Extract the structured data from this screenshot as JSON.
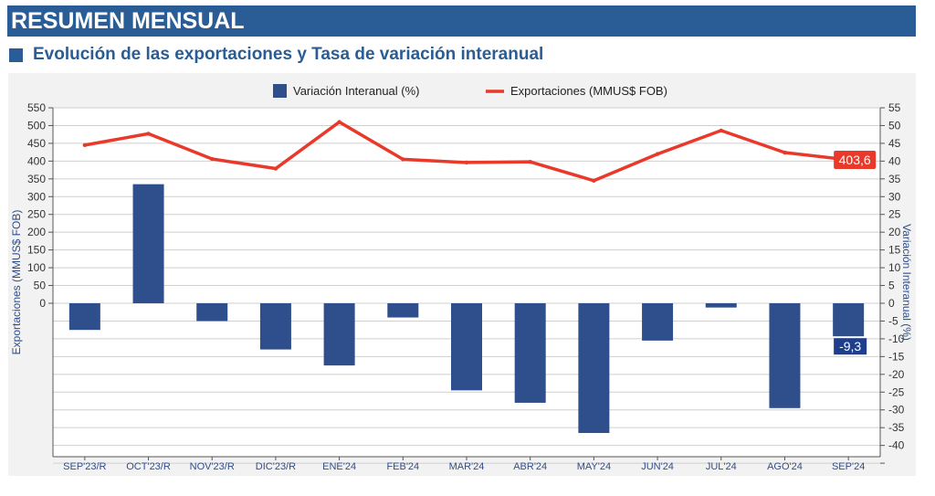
{
  "header": {
    "title": "RESUMEN MENSUAL",
    "subtitle": "Evolución de las exportaciones y Tasa de variación interanual"
  },
  "colors": {
    "banner": "#2a5d95",
    "bar": "#2f4e8c",
    "line": "#e8392b",
    "panel": "#f2f2f2",
    "grid": "#cfcfcf",
    "axis_text": "#2f4e8c"
  },
  "chart_data": {
    "type": "bar",
    "categories": [
      "SEP'23/R",
      "OCT'23/R",
      "NOV'23/R",
      "DIC'23/R",
      "ENE'24",
      "FEB'24",
      "MAR'24",
      "ABR'24",
      "MAY'24",
      "JUN'24",
      "JUL'24",
      "AGO'24",
      "SEP'24"
    ],
    "series": [
      {
        "name": "Variación Interanual (%)",
        "type": "bar",
        "axis": "right",
        "values": [
          -7.5,
          33.5,
          -5.0,
          -13.0,
          -17.5,
          -4.0,
          -24.5,
          -28.0,
          -36.5,
          -10.5,
          -1.2,
          -29.5,
          -9.3
        ]
      },
      {
        "name": "Exportaciones (MMUS$ FOB)",
        "type": "line",
        "axis": "left",
        "values": [
          445,
          477,
          406,
          379,
          510,
          405,
          396,
          398,
          345,
          420,
          486,
          424,
          403.6
        ]
      }
    ],
    "y_left": {
      "label": "Exportaciones (MMUS$ FOB)",
      "ticks": [
        "550",
        "500",
        "450",
        "400",
        "350",
        "300",
        "250",
        "200",
        "150",
        "100",
        "50",
        "0"
      ],
      "range": [
        0,
        550
      ]
    },
    "y_right": {
      "label": "Variación Interanual (%)",
      "ticks": [
        "55",
        "50",
        "45",
        "40",
        "35",
        "30",
        "25",
        "20",
        "15",
        "10",
        "5",
        "0",
        "-5",
        "-10",
        "-15",
        "-20",
        "-25",
        "-30",
        "-35",
        "-40"
      ],
      "range": [
        -45,
        55
      ]
    },
    "data_labels": {
      "line_last": "403,6",
      "bar_last": "-9,3"
    },
    "legend": {
      "position": "top",
      "items": [
        "Variación Interanual (%)",
        "Exportaciones (MMUS$ FOB)"
      ]
    },
    "grid": true
  }
}
